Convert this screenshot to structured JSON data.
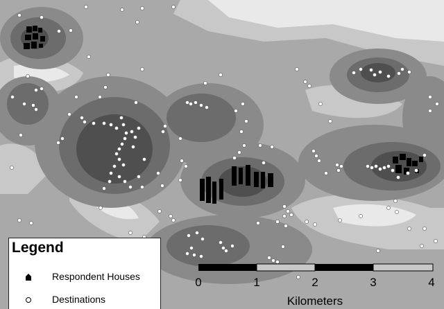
{
  "map": {
    "legend": {
      "title": "Legend",
      "items": [
        {
          "label": "Respondent Houses",
          "symbol": "black-house-icon"
        },
        {
          "label": "Destinations",
          "symbol": "white-circle-icon"
        }
      ]
    },
    "scale_bar": {
      "ticks": [
        "0",
        "1",
        "2",
        "3",
        "4"
      ],
      "unit": "Kilometers"
    },
    "colors": {
      "lightest": "#e9e9e9",
      "light": "#c8c8c8",
      "mid": "#a9a9a9",
      "dark": "#8a8a8a",
      "darker": "#6c6c6c",
      "darkest": "#4f4f4f",
      "houses": "#000000",
      "destinations": "#ffffff"
    }
  }
}
